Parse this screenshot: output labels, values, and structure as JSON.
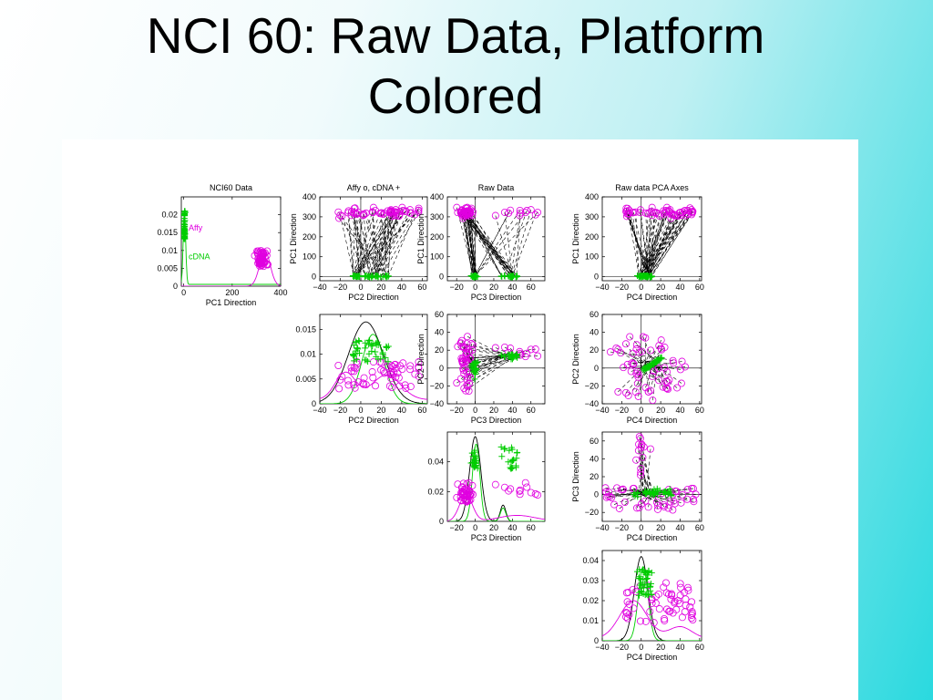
{
  "slide": {
    "title_line1": "NCI 60:  Raw Data, Platform",
    "title_line2": "Colored"
  },
  "colors": {
    "affy": "#e000e0",
    "cdna": "#00cc00",
    "kde": "#000000",
    "background_light": "#ffffff",
    "background_accent": "#2ad9df"
  },
  "chart_data": [
    {
      "type": "line",
      "title": "NCI60 Data",
      "xlabel": "PC1 Direction",
      "ylabel": "",
      "xlim": [
        -10,
        400
      ],
      "ylim": [
        0,
        0.025
      ],
      "xticks": [
        0,
        200,
        400
      ],
      "xtick_labels": [
        "0",
        "200",
        "400"
      ],
      "yticks": [
        0,
        0.005,
        0.01,
        0.015,
        0.02
      ],
      "ytick_labels": [
        "0",
        "0.005",
        "0.01",
        "0.015",
        "0.02"
      ],
      "annotations": [
        {
          "text": "Affy",
          "x": 20,
          "y": 0.0155,
          "color": "#e000e0"
        },
        {
          "text": "cDNA",
          "x": 20,
          "y": 0.0075,
          "color": "#00cc00"
        }
      ]
    },
    {
      "type": "scatter",
      "title": "Affy o,   cDNA +",
      "xlabel": "PC2 Direction",
      "ylabel": "PC1 Direction",
      "xlim": [
        -40,
        65
      ],
      "ylim": [
        -20,
        400
      ],
      "xticks": [
        -40,
        -20,
        0,
        20,
        40,
        60
      ],
      "xtick_labels": [
        "−40",
        "−20",
        "0",
        "20",
        "40",
        "60"
      ],
      "yticks": [
        0,
        100,
        200,
        300,
        400
      ],
      "ytick_labels": [
        "0",
        "100",
        "200",
        "300",
        "400"
      ]
    },
    {
      "type": "scatter",
      "title": "Raw Data",
      "xlabel": "PC3 Direction",
      "ylabel": "PC1 Direction",
      "xlim": [
        -30,
        75
      ],
      "ylim": [
        -20,
        400
      ],
      "xticks": [
        -20,
        0,
        20,
        40,
        60
      ],
      "xtick_labels": [
        "−20",
        "0",
        "20",
        "40",
        "60"
      ],
      "yticks": [
        0,
        100,
        200,
        300,
        400
      ],
      "ytick_labels": [
        "0",
        "100",
        "200",
        "300",
        "400"
      ]
    },
    {
      "type": "scatter",
      "title": "Raw data PCA Axes",
      "xlabel": "PC4 Direction",
      "ylabel": "PC1 Direction",
      "xlim": [
        -40,
        62
      ],
      "ylim": [
        -20,
        400
      ],
      "xticks": [
        -40,
        -20,
        0,
        20,
        40,
        60
      ],
      "xtick_labels": [
        "−40",
        "−20",
        "0",
        "20",
        "40",
        "60"
      ],
      "yticks": [
        0,
        100,
        200,
        300,
        400
      ],
      "ytick_labels": [
        "0",
        "100",
        "200",
        "300",
        "400"
      ]
    },
    {
      "type": "line",
      "title": "",
      "xlabel": "PC2 Direction",
      "ylabel": "",
      "xlim": [
        -40,
        65
      ],
      "ylim": [
        0,
        0.018
      ],
      "xticks": [
        -40,
        -20,
        0,
        20,
        40,
        60
      ],
      "xtick_labels": [
        "−40",
        "−20",
        "0",
        "20",
        "40",
        "60"
      ],
      "yticks": [
        0,
        0.005,
        0.01,
        0.015
      ],
      "ytick_labels": [
        "0",
        "0.005",
        "0.01",
        "0.015"
      ]
    },
    {
      "type": "scatter",
      "title": "",
      "xlabel": "PC3 Direction",
      "ylabel": "PC2 Direction",
      "xlim": [
        -30,
        75
      ],
      "ylim": [
        -40,
        60
      ],
      "xticks": [
        -20,
        0,
        20,
        40,
        60
      ],
      "xtick_labels": [
        "−20",
        "0",
        "20",
        "40",
        "60"
      ],
      "yticks": [
        -40,
        -20,
        0,
        20,
        40,
        60
      ],
      "ytick_labels": [
        "−40",
        "−20",
        "0",
        "20",
        "40",
        "60"
      ]
    },
    {
      "type": "scatter",
      "title": "",
      "xlabel": "PC4 Direction",
      "ylabel": "PC2 Direction",
      "xlim": [
        -40,
        62
      ],
      "ylim": [
        -40,
        60
      ],
      "xticks": [
        -40,
        -20,
        0,
        20,
        40,
        60
      ],
      "xtick_labels": [
        "−40",
        "−20",
        "0",
        "20",
        "40",
        "60"
      ],
      "yticks": [
        -40,
        -20,
        0,
        20,
        40,
        60
      ],
      "ytick_labels": [
        "−40",
        "−20",
        "0",
        "20",
        "40",
        "60"
      ]
    },
    {
      "type": "line",
      "title": "",
      "xlabel": "PC3 Direction",
      "ylabel": "",
      "xlim": [
        -30,
        75
      ],
      "ylim": [
        0,
        0.06
      ],
      "xticks": [
        -20,
        0,
        20,
        40,
        60
      ],
      "xtick_labels": [
        "−20",
        "0",
        "20",
        "40",
        "60"
      ],
      "yticks": [
        0,
        0.02,
        0.04
      ],
      "ytick_labels": [
        "0",
        "0.02",
        "0.04"
      ]
    },
    {
      "type": "scatter",
      "title": "",
      "xlabel": "PC4 Direction",
      "ylabel": "PC3 Direction",
      "xlim": [
        -40,
        62
      ],
      "ylim": [
        -30,
        70
      ],
      "xticks": [
        -40,
        -20,
        0,
        20,
        40,
        60
      ],
      "xtick_labels": [
        "−40",
        "−20",
        "0",
        "20",
        "40",
        "60"
      ],
      "yticks": [
        -20,
        0,
        20,
        40,
        60
      ],
      "ytick_labels": [
        "−20",
        "0",
        "20",
        "40",
        "60"
      ]
    },
    {
      "type": "line",
      "title": "",
      "xlabel": "PC4 Direction",
      "ylabel": "",
      "xlim": [
        -40,
        62
      ],
      "ylim": [
        0,
        0.045
      ],
      "xticks": [
        -40,
        -20,
        0,
        20,
        40,
        60
      ],
      "xtick_labels": [
        "−40",
        "−20",
        "0",
        "20",
        "40",
        "60"
      ],
      "yticks": [
        0,
        0.01,
        0.02,
        0.03,
        0.04
      ],
      "ytick_labels": [
        "0",
        "0.01",
        "0.02",
        "0.03",
        "0.04"
      ]
    }
  ]
}
